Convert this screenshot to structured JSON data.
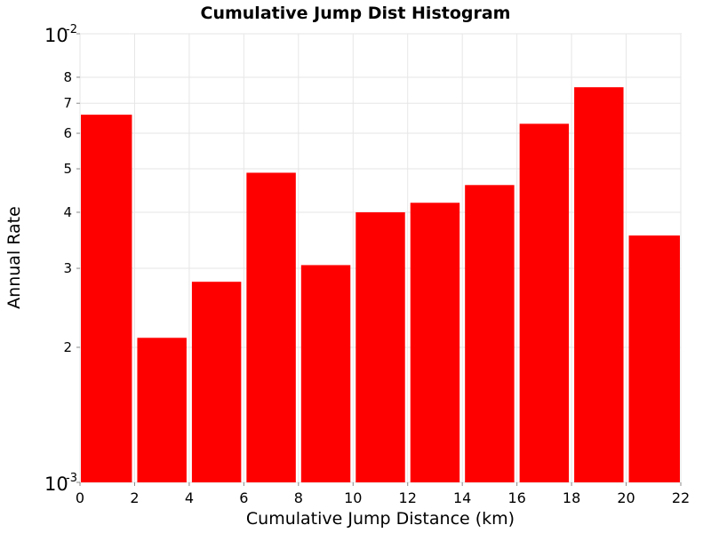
{
  "chart_data": {
    "type": "bar",
    "title": "Cumulative Jump Dist Histogram",
    "xlabel": "Cumulative Jump Distance (km)",
    "ylabel": "Annual Rate",
    "bin_edges": [
      0,
      2,
      4,
      6,
      8,
      10,
      12,
      14,
      16,
      18,
      20,
      22
    ],
    "values": [
      0.0066,
      0.0021,
      0.0028,
      0.0049,
      0.00305,
      0.004,
      0.0042,
      0.0046,
      0.0063,
      0.0076,
      0.00355
    ],
    "xlim": [
      0,
      22
    ],
    "ylim": [
      0.001,
      0.01
    ],
    "y_scale": "log",
    "bar_color": "#ff0000",
    "grid": true,
    "x_ticks": [
      "0",
      "2",
      "4",
      "6",
      "8",
      "10",
      "12",
      "14",
      "16",
      "18",
      "20",
      "22"
    ],
    "y_decade_ticks": [
      {
        "value": 0.01,
        "base": "10",
        "exp": "-2"
      },
      {
        "value": 0.001,
        "base": "10",
        "exp": "-3"
      }
    ],
    "y_minor_ticks": [
      {
        "value": 0.002,
        "label": "2"
      },
      {
        "value": 0.003,
        "label": "3"
      },
      {
        "value": 0.004,
        "label": "4"
      },
      {
        "value": 0.005,
        "label": "5"
      },
      {
        "value": 0.006,
        "label": "6"
      },
      {
        "value": 0.007,
        "label": "7"
      },
      {
        "value": 0.008,
        "label": "8"
      }
    ]
  }
}
